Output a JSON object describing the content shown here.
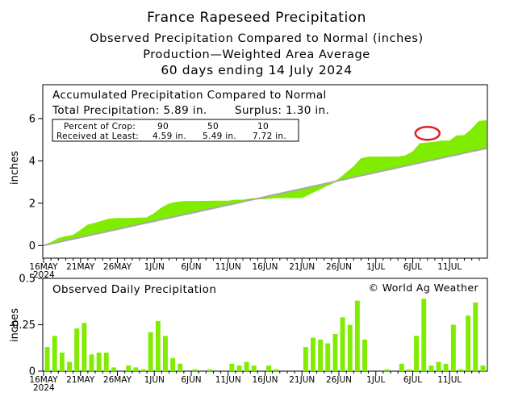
{
  "header": {
    "title": "France Rapeseed Precipitation",
    "subtitle1": "Observed Precipitation Compared to Normal (inches)",
    "subtitle2": "Production—Weighted Area Average",
    "subtitle3": "60 days ending 14 July 2024"
  },
  "top_panel": {
    "title": "Accumulated Precipitation Compared to Normal",
    "total_label": "Total Precipitation: 5.89 in.",
    "surplus_label": "Surplus: 1.30 in.",
    "table": {
      "row1_label": "Percent of Crop:",
      "row2_label": "Received at Least:",
      "percents": [
        "90",
        "50",
        "10"
      ],
      "amounts": [
        "4.59 in.",
        "5.49 in.",
        "7.72 in."
      ]
    }
  },
  "bottom_panel": {
    "title": "Observed Daily Precipitation",
    "copyright": "© World Ag Weather"
  },
  "colors": {
    "surplus": "#80ec00",
    "normal": "#a8a8a8",
    "bars": "#80ec00",
    "circle": "#e02020"
  },
  "chart_data": [
    {
      "type": "area",
      "title": "Accumulated Precipitation Compared to Normal",
      "ylabel": "inches",
      "ylim": [
        -0.6,
        7.6
      ],
      "yticks": [
        0,
        2,
        4,
        6
      ],
      "x_ticks": [
        "16MAY",
        "21MAY",
        "26MAY",
        "1JUN",
        "6JUN",
        "11JUN",
        "16JUN",
        "21JUN",
        "26JUN",
        "1JUL",
        "6JUL",
        "11JUL"
      ],
      "x_year": "2024",
      "days": 60,
      "series": [
        {
          "name": "observed",
          "values": [
            0.13,
            0.32,
            0.42,
            0.47,
            0.7,
            0.96,
            1.05,
            1.15,
            1.25,
            1.27,
            1.27,
            1.27,
            1.29,
            1.3,
            1.5,
            1.77,
            1.96,
            2.03,
            2.07,
            2.07,
            2.08,
            2.08,
            2.09,
            2.09,
            2.09,
            2.14,
            2.14,
            2.19,
            2.22,
            2.22,
            2.26,
            2.27,
            2.27,
            2.27,
            2.27,
            2.44,
            2.61,
            2.78,
            2.93,
            3.13,
            3.42,
            3.71,
            4.09,
            4.17,
            4.17,
            4.17,
            4.18,
            4.18,
            4.23,
            4.42,
            4.81,
            4.84,
            4.88,
            4.93,
            4.93,
            5.18,
            5.19,
            5.49,
            5.86,
            5.89
          ]
        },
        {
          "name": "normal",
          "values": [
            0.08,
            0.15,
            0.23,
            0.31,
            0.38,
            0.46,
            0.54,
            0.61,
            0.69,
            0.77,
            0.84,
            0.92,
            1.0,
            1.07,
            1.15,
            1.23,
            1.3,
            1.38,
            1.46,
            1.53,
            1.61,
            1.69,
            1.76,
            1.84,
            1.92,
            1.99,
            2.07,
            2.15,
            2.22,
            2.3,
            2.38,
            2.45,
            2.53,
            2.61,
            2.68,
            2.76,
            2.84,
            2.91,
            2.99,
            3.07,
            3.14,
            3.22,
            3.3,
            3.37,
            3.45,
            3.53,
            3.6,
            3.68,
            3.76,
            3.83,
            3.91,
            3.99,
            4.06,
            4.14,
            4.22,
            4.29,
            4.37,
            4.45,
            4.52,
            4.59
          ]
        }
      ],
      "annotation": {
        "type": "circle",
        "day": 52,
        "value": 5.3
      }
    },
    {
      "type": "bar",
      "title": "Observed Daily Precipitation",
      "ylabel": "inches",
      "ylim": [
        0,
        0.5
      ],
      "yticks": [
        "0",
        "0.25",
        "0.5"
      ],
      "x_ticks": [
        "16MAY",
        "21MAY",
        "26MAY",
        "1JUN",
        "6JUN",
        "11JUN",
        "16JUN",
        "21JUN",
        "26JUN",
        "1JUL",
        "6JUL",
        "11JUL"
      ],
      "x_year": "2024",
      "values": [
        0.13,
        0.19,
        0.1,
        0.05,
        0.23,
        0.26,
        0.09,
        0.1,
        0.1,
        0.02,
        0.0,
        0.03,
        0.02,
        0.01,
        0.21,
        0.27,
        0.19,
        0.07,
        0.04,
        0.0,
        0.01,
        0.0,
        0.01,
        0.0,
        0.0,
        0.04,
        0.03,
        0.05,
        0.03,
        0.0,
        0.03,
        0.01,
        0.0,
        0.0,
        0.0,
        0.13,
        0.18,
        0.17,
        0.15,
        0.2,
        0.29,
        0.25,
        0.38,
        0.17,
        0.0,
        0.0,
        0.01,
        0.0,
        0.04,
        0.01,
        0.19,
        0.39,
        0.03,
        0.05,
        0.04,
        0.25,
        0.01,
        0.3,
        0.37,
        0.03
      ]
    }
  ]
}
